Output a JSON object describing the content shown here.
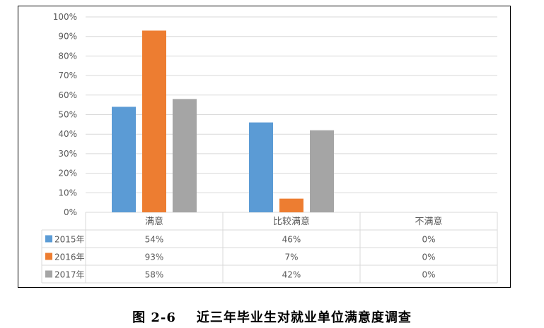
{
  "caption": "图 2-6    近三年毕业生对就业单位满意度调查",
  "chart_data": {
    "type": "bar",
    "categories": [
      "满意",
      "比较满意",
      "不满意"
    ],
    "series": [
      {
        "name": "2015年",
        "values": [
          54,
          46,
          0
        ],
        "labels": [
          "54%",
          "46%",
          "0%"
        ],
        "color": "#5b9bd5"
      },
      {
        "name": "2016年",
        "values": [
          93,
          7,
          0
        ],
        "labels": [
          "93%",
          "7%",
          "0%"
        ],
        "color": "#ed7d31"
      },
      {
        "name": "2017年",
        "values": [
          58,
          42,
          0
        ],
        "labels": [
          "58%",
          "42%",
          "0%"
        ],
        "color": "#a5a5a5"
      }
    ],
    "ylim": [
      0,
      100
    ],
    "yticks": [
      "0%",
      "10%",
      "20%",
      "30%",
      "40%",
      "50%",
      "60%",
      "70%",
      "80%",
      "90%",
      "100%"
    ],
    "grid": true,
    "legend": "data-table"
  }
}
